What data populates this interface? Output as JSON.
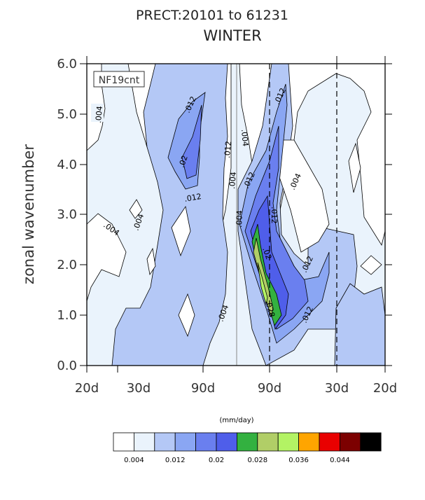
{
  "chart_data": {
    "type": "contour",
    "title": "PRECT:20101 to 61231",
    "subtitle": "WINTER",
    "ylabel": "zonal wavenumber",
    "xlabel": "",
    "ylim": [
      0.0,
      6.0
    ],
    "yticks": [
      "0.0",
      "1.0",
      "2.0",
      "3.0",
      "4.0",
      "5.0",
      "6.0"
    ],
    "xticks": [
      "20d",
      "30d",
      "90d",
      "90d",
      "30d",
      "20d"
    ],
    "case_label": "NF19cnt",
    "units": "(mm/day)",
    "contour_levels": [
      0.004,
      0.008,
      0.012,
      0.016,
      0.02,
      0.024,
      0.028,
      0.032,
      0.036,
      0.04,
      0.044,
      0.048
    ],
    "contour_labels": [
      ".004",
      ".004",
      ".004",
      ".004",
      ".004",
      ".004",
      ".012",
      ".02",
      ".012",
      ".004",
      ".012",
      ".02",
      ".012",
      ".028",
      ".012",
      ".004",
      ".012",
      ".012",
      ".012"
    ],
    "colorbar": {
      "colors": [
        "#ffffff",
        "#eaf3fc",
        "#b4c8f6",
        "#8aa6f3",
        "#6a7fef",
        "#4f5eea",
        "#33b140",
        "#b1ce67",
        "#b3f364",
        "#ffa500",
        "#e90000",
        "#7c0000",
        "#000000"
      ],
      "labels": [
        "0.004",
        "0.012",
        "0.02",
        "0.028",
        "0.036",
        "0.044"
      ]
    }
  }
}
